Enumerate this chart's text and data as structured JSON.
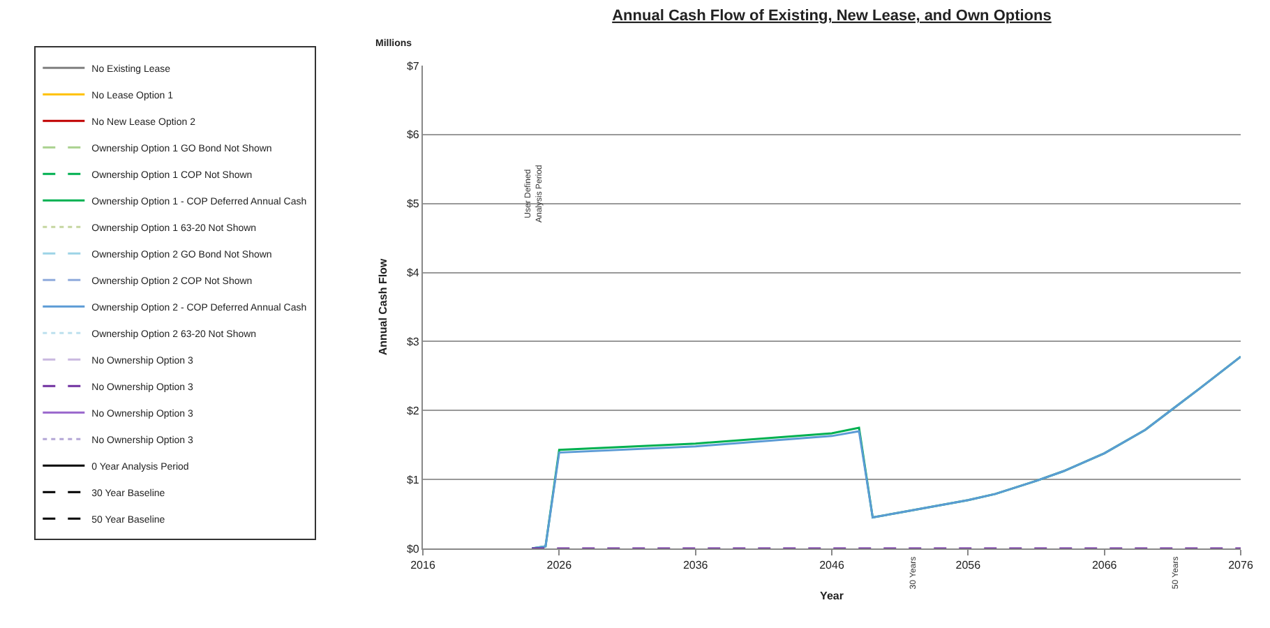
{
  "chart_data": {
    "type": "line",
    "title": "Annual Cash Flow of Existing, New Lease, and Own Options",
    "xlabel": "Year",
    "ylabel": "Annual Cash Flow",
    "xlim": [
      2016,
      2076
    ],
    "xticks": [
      2016,
      2026,
      2036,
      2046,
      2056,
      2066,
      2076
    ],
    "ylim": [
      0,
      7
    ],
    "yticks": [
      {
        "value": 0,
        "label": "$0"
      },
      {
        "value": 1,
        "label": "$1"
      },
      {
        "value": 2,
        "label": "$2"
      },
      {
        "value": 3,
        "label": "$3"
      },
      {
        "value": 4,
        "label": "$4"
      },
      {
        "value": 5,
        "label": "$5"
      },
      {
        "value": 6,
        "label": "$6"
      },
      {
        "value": 7,
        "label": "$7"
      }
    ],
    "grid": "y",
    "legend": "left",
    "marker": "none",
    "annotations": [
      "Millions",
      "User Defined\nAnalysis Period",
      "30 Years",
      "50 Years"
    ],
    "series": [
      {
        "name": "No Existing Lease",
        "color": "#808080",
        "line_style": "solid"
      },
      {
        "name": "No Lease Option 1",
        "color": "#ffc000",
        "line_style": "solid"
      },
      {
        "name": "No New Lease Option 2",
        "color": "#c00000",
        "line_style": "solid"
      },
      {
        "name": "Ownership Option 1 GO Bond Not Shown",
        "color": "#a9d18e",
        "line_style": "dashed"
      },
      {
        "name": "Ownership Option 1 COP Not Shown",
        "color": "#00b050",
        "line_style": "dashed"
      },
      {
        "name": "Ownership Option 1 - COP Deferred Annual Cash",
        "color": "#00b050",
        "line_style": "solid",
        "x": [
          2024,
          2025,
          2026,
          2036,
          2046,
          2048,
          2049,
          2051,
          2056,
          2058,
          2061,
          2063,
          2066,
          2069,
          2071,
          2073,
          2076
        ],
        "values": [
          0,
          0.03,
          1.43,
          1.52,
          1.67,
          1.75,
          0.45,
          0.52,
          0.7,
          0.79,
          0.98,
          1.12,
          1.38,
          1.72,
          2.02,
          2.32,
          2.78
        ]
      },
      {
        "name": "Ownership Option 1 63-20 Not Shown",
        "color": "#c5d6a0",
        "line_style": "dotted"
      },
      {
        "name": "Ownership Option 2 GO Bond Not Shown",
        "color": "#9dd3e6",
        "line_style": "dashed"
      },
      {
        "name": "Ownership Option 2 COP Not Shown",
        "color": "#8faadc",
        "line_style": "dashed"
      },
      {
        "name": "Ownership Option 2 - COP Deferred Annual Cash",
        "color": "#5b9bd5",
        "line_style": "solid",
        "x": [
          2024,
          2025,
          2026,
          2036,
          2046,
          2048,
          2049,
          2051,
          2056,
          2058,
          2061,
          2063,
          2066,
          2069,
          2071,
          2073,
          2076
        ],
        "values": [
          0,
          0.03,
          1.39,
          1.48,
          1.63,
          1.7,
          0.45,
          0.52,
          0.7,
          0.79,
          0.98,
          1.12,
          1.38,
          1.72,
          2.02,
          2.32,
          2.78
        ]
      },
      {
        "name": "Ownership Option 2 63-20 Not Shown",
        "color": "#bde0ee",
        "line_style": "dotted"
      },
      {
        "name": "No Ownership Option 3",
        "color": "#c9b8e0",
        "line_style": "dashed"
      },
      {
        "name": "No Ownership Option 3",
        "color": "#7030a0",
        "line_style": "dashed",
        "x": [
          2024,
          2076
        ],
        "values": [
          0,
          0
        ]
      },
      {
        "name": "No Ownership Option 3",
        "color": "#9966cc",
        "line_style": "solid"
      },
      {
        "name": "No Ownership Option 3",
        "color": "#b4a7d6",
        "line_style": "dotted"
      },
      {
        "name": "0 Year Analysis Period",
        "color": "#000000",
        "line_style": "solid"
      },
      {
        "name": "30 Year Baseline",
        "color": "#000000",
        "line_style": "dashed"
      },
      {
        "name": "50 Year Baseline",
        "color": "#000000",
        "line_style": "dashed"
      }
    ]
  }
}
